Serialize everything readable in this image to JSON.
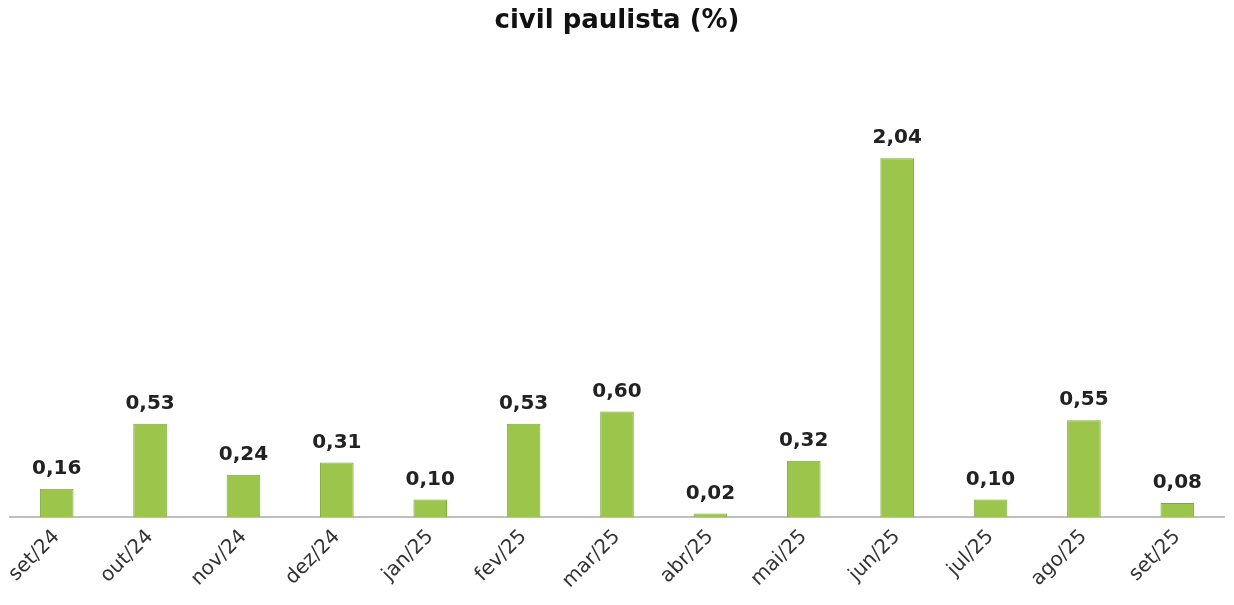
{
  "chart_data": {
    "type": "bar",
    "title": "civil paulista (%)",
    "categories": [
      "set/24",
      "out/24",
      "nov/24",
      "dez/24",
      "jan/25",
      "fev/25",
      "mar/25",
      "abr/25",
      "mai/25",
      "jun/25",
      "jul/25",
      "ago/25",
      "set/25"
    ],
    "values": [
      0.16,
      0.53,
      0.24,
      0.31,
      0.1,
      0.53,
      0.6,
      0.02,
      0.32,
      2.04,
      0.1,
      0.55,
      0.08
    ],
    "value_labels": [
      "0,16",
      "0,53",
      "0,24",
      "0,31",
      "0,10",
      "0,53",
      "0,60",
      "0,02",
      "0,32",
      "2,04",
      "0,10",
      "0,55",
      "0,08"
    ],
    "color": "#9bc54b",
    "grid": false,
    "legend": false
  }
}
